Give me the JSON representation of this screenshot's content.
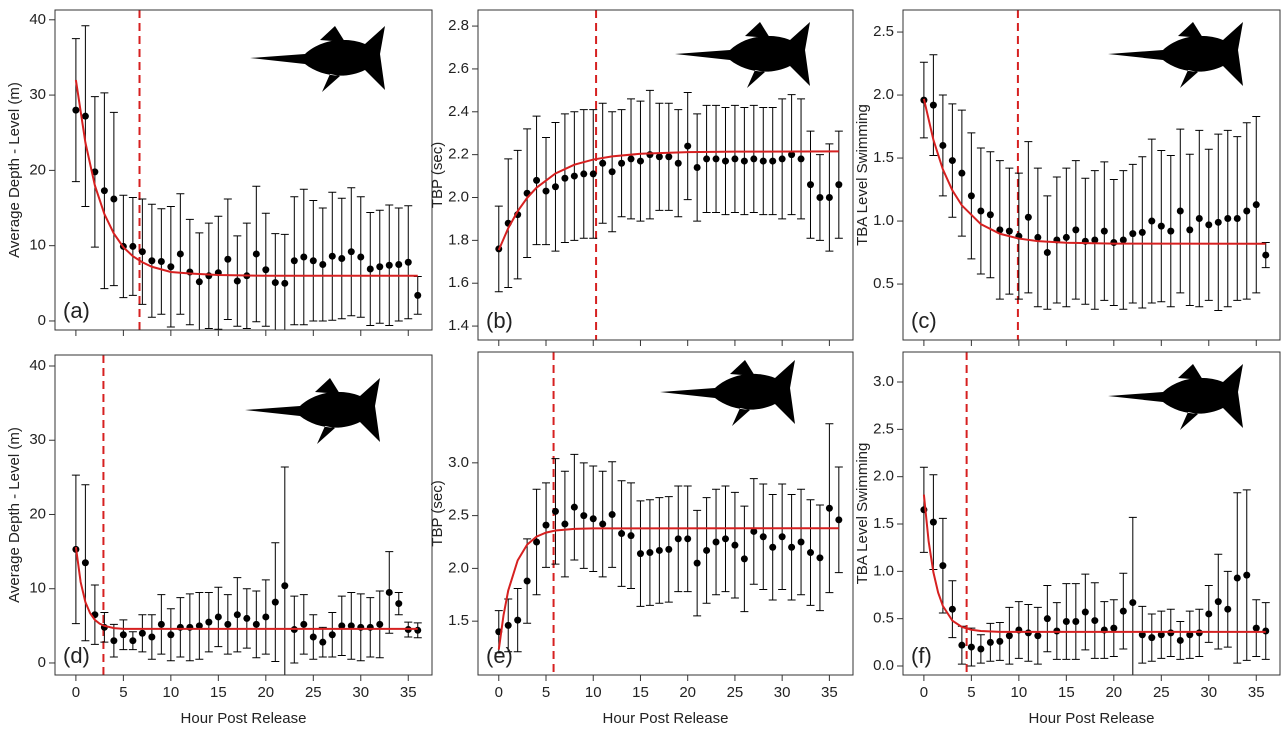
{
  "chart_data": [
    {
      "type": "errorbar",
      "panel_label": "(a)",
      "ylabel": "Average Depth - Level (m)",
      "show_xtick_labels": false,
      "x": [
        0,
        1,
        2,
        3,
        4,
        5,
        6,
        7,
        8,
        9,
        10,
        11,
        12,
        13,
        14,
        15,
        16,
        17,
        18,
        19,
        20,
        21,
        22,
        23,
        24,
        25,
        26,
        27,
        28,
        29,
        30,
        31,
        32,
        33,
        34,
        35,
        36
      ],
      "points": {
        "color": "#000000",
        "values": [
          28,
          27.2,
          19.8,
          17.3,
          16.2,
          9.9,
          9.9,
          9.2,
          8,
          7.9,
          7.2,
          8.9,
          6.5,
          5.2,
          6,
          6.4,
          8.2,
          5.3,
          6,
          8.9,
          6.8,
          5.1,
          5,
          8,
          8.5,
          8,
          7.5,
          8.6,
          8.3,
          9.2,
          8.5,
          6.9,
          7.2,
          7.4,
          7.5,
          7.8,
          3.4
        ],
        "errors": [
          9.5,
          12,
          10,
          13,
          11.5,
          6.8,
          6.5,
          7,
          7.5,
          7,
          8,
          8,
          7,
          6.5,
          7,
          7.5,
          8,
          6,
          7,
          9,
          7.5,
          6.5,
          6.5,
          8.5,
          9,
          8,
          7.5,
          8.5,
          8,
          8.5,
          8,
          7.5,
          7.5,
          8,
          7.5,
          7.5,
          2.5
        ]
      },
      "fit": {
        "color": "#d62020",
        "x": [
          0,
          1,
          2,
          3,
          4,
          5,
          6,
          7,
          8,
          10,
          12,
          15,
          20,
          25,
          30,
          36
        ],
        "values": [
          32,
          23.7,
          18,
          14.2,
          11.6,
          9.8,
          8.6,
          7.8,
          7.2,
          6.5,
          6.3,
          6.1,
          6,
          6,
          6,
          6
        ]
      },
      "vline": 6.7,
      "vline_color": "#d62020",
      "xlim": [
        -2.2,
        37.5
      ],
      "xticks": [
        0,
        5,
        10,
        15,
        20,
        25,
        30,
        35
      ],
      "ylim": [
        -1.2,
        41.3
      ],
      "yticks": [
        0,
        10,
        20,
        30,
        40
      ]
    },
    {
      "type": "errorbar",
      "panel_label": "(b)",
      "ylabel": "TBP (sec)",
      "show_xtick_labels": false,
      "x": [
        0,
        1,
        2,
        3,
        4,
        5,
        6,
        7,
        8,
        9,
        10,
        11,
        12,
        13,
        14,
        15,
        16,
        17,
        18,
        19,
        20,
        21,
        22,
        23,
        24,
        25,
        26,
        27,
        28,
        29,
        30,
        31,
        32,
        33,
        34,
        35,
        36
      ],
      "points": {
        "color": "#000000",
        "values": [
          1.76,
          1.88,
          1.92,
          2.02,
          2.08,
          2.03,
          2.05,
          2.09,
          2.1,
          2.11,
          2.11,
          2.16,
          2.12,
          2.16,
          2.18,
          2.17,
          2.2,
          2.19,
          2.19,
          2.16,
          2.24,
          2.14,
          2.18,
          2.18,
          2.17,
          2.18,
          2.17,
          2.18,
          2.17,
          2.17,
          2.18,
          2.2,
          2.18,
          2.06,
          2,
          2,
          2.06
        ],
        "errors": [
          0.2,
          0.3,
          0.3,
          0.3,
          0.3,
          0.25,
          0.3,
          0.3,
          0.3,
          0.3,
          0.3,
          0.28,
          0.28,
          0.25,
          0.28,
          0.28,
          0.3,
          0.25,
          0.25,
          0.25,
          0.25,
          0.25,
          0.25,
          0.25,
          0.25,
          0.25,
          0.25,
          0.25,
          0.25,
          0.25,
          0.28,
          0.28,
          0.28,
          0.25,
          0.2,
          0.25,
          0.25
        ]
      },
      "fit": {
        "color": "#d62020",
        "x": [
          0,
          1,
          2,
          3,
          4,
          6,
          8,
          10,
          12,
          15,
          20,
          25,
          36
        ],
        "values": [
          1.755,
          1.857,
          1.936,
          1.998,
          2.046,
          2.112,
          2.153,
          2.177,
          2.192,
          2.204,
          2.212,
          2.214,
          2.215
        ]
      },
      "vline": 10.3,
      "vline_color": "#d62020",
      "xlim": [
        -2.2,
        37.5
      ],
      "xticks": [
        0,
        5,
        10,
        15,
        20,
        25,
        30,
        35
      ],
      "ylim": [
        1.335,
        2.875
      ],
      "yticks": [
        1.4,
        1.6,
        1.8,
        {
          "value": 2,
          "label": "2.0"
        },
        2.2,
        2.4,
        2.6,
        2.8
      ]
    },
    {
      "type": "errorbar",
      "panel_label": "(c)",
      "ylabel": "TBA Level Swimming",
      "show_xtick_labels": false,
      "x": [
        0,
        1,
        2,
        3,
        4,
        5,
        6,
        7,
        8,
        9,
        10,
        11,
        12,
        13,
        14,
        15,
        16,
        17,
        18,
        19,
        20,
        21,
        22,
        23,
        24,
        25,
        26,
        27,
        28,
        29,
        30,
        31,
        32,
        33,
        34,
        35,
        36
      ],
      "points": {
        "color": "#000000",
        "values": [
          1.96,
          1.92,
          1.6,
          1.48,
          1.38,
          1.2,
          1.08,
          1.05,
          0.93,
          0.92,
          0.88,
          1.03,
          0.87,
          0.75,
          0.85,
          0.87,
          0.93,
          0.84,
          0.85,
          0.92,
          0.83,
          0.85,
          0.9,
          0.91,
          1,
          0.96,
          0.92,
          1.08,
          0.93,
          1.02,
          0.97,
          0.99,
          1.02,
          1.02,
          1.08,
          1.13,
          0.73
        ],
        "errors": [
          0.3,
          0.4,
          0.4,
          0.45,
          0.5,
          0.5,
          0.5,
          0.5,
          0.55,
          0.5,
          0.5,
          0.6,
          0.55,
          0.45,
          0.5,
          0.55,
          0.55,
          0.5,
          0.55,
          0.55,
          0.5,
          0.55,
          0.55,
          0.6,
          0.65,
          0.6,
          0.6,
          0.65,
          0.6,
          0.7,
          0.6,
          0.7,
          0.7,
          0.65,
          0.7,
          0.7,
          0.1
        ]
      },
      "fit": {
        "color": "#d62020",
        "x": [
          0,
          1,
          2,
          3,
          4,
          6,
          8,
          10,
          12,
          15,
          20,
          36
        ],
        "values": [
          1.97,
          1.645,
          1.41,
          1.243,
          1.124,
          0.975,
          0.899,
          0.861,
          0.841,
          0.828,
          0.821,
          0.82
        ]
      },
      "vline": 9.9,
      "vline_color": "#d62020",
      "xlim": [
        -2.2,
        37.5
      ],
      "xticks": [
        0,
        5,
        10,
        15,
        20,
        25,
        30,
        35
      ],
      "ylim": [
        0.056,
        2.675
      ],
      "yticks": [
        0.5,
        {
          "value": 1,
          "label": "1.0"
        },
        1.5,
        {
          "value": 2,
          "label": "2.0"
        },
        2.5
      ]
    },
    {
      "type": "errorbar",
      "panel_label": "(d)",
      "ylabel": "Average Depth - Level (m)",
      "xlabel": "Hour Post Release",
      "show_xtick_labels": true,
      "x": [
        0,
        1,
        2,
        3,
        4,
        5,
        6,
        7,
        8,
        9,
        10,
        11,
        12,
        13,
        14,
        15,
        16,
        17,
        18,
        19,
        20,
        21,
        22,
        23,
        24,
        25,
        26,
        27,
        28,
        29,
        30,
        31,
        32,
        33,
        34,
        35,
        36
      ],
      "points": {
        "color": "#000000",
        "values": [
          15.3,
          13.5,
          6.5,
          4.8,
          3,
          3.8,
          3,
          4,
          3.5,
          5.2,
          3.8,
          4.8,
          4.8,
          5,
          5.5,
          6.2,
          5.2,
          6.5,
          6,
          5.2,
          6.2,
          8.2,
          10.4,
          4.5,
          5.2,
          3.5,
          2.8,
          3.8,
          5,
          5,
          4.8,
          4.8,
          5.2,
          9.5,
          8,
          4.5,
          4.4
        ],
        "errors": [
          10,
          10.5,
          4,
          2,
          2.2,
          2,
          1.2,
          2.5,
          3,
          4,
          3.5,
          4,
          4.5,
          4.5,
          4,
          4,
          4,
          5,
          4,
          4.5,
          5,
          8,
          16,
          4.5,
          4,
          3,
          2,
          3,
          4,
          4.5,
          4.5,
          4,
          4.5,
          5.5,
          1.5,
          1,
          1
        ]
      },
      "fit": {
        "color": "#d62020",
        "x": [
          0,
          0.5,
          1,
          1.5,
          2,
          2.5,
          3,
          4,
          5,
          8,
          36
        ],
        "values": [
          15.6,
          10.9,
          8.2,
          6.7,
          5.8,
          5.3,
          5,
          4.7,
          4.6,
          4.6,
          4.6
        ]
      },
      "vline": 2.9,
      "vline_color": "#d62020",
      "xlim": [
        -2.2,
        37.5
      ],
      "xticks": [
        0,
        5,
        10,
        15,
        20,
        25,
        30,
        35
      ],
      "ylim": [
        -1.62,
        41.48
      ],
      "yticks": [
        0,
        10,
        20,
        30,
        40
      ]
    },
    {
      "type": "errorbar",
      "panel_label": "(e)",
      "ylabel": "TBP (sec)",
      "xlabel": "Hour Post Release",
      "show_xtick_labels": true,
      "x": [
        0,
        1,
        2,
        3,
        4,
        5,
        6,
        7,
        8,
        9,
        10,
        11,
        12,
        13,
        14,
        15,
        16,
        17,
        18,
        19,
        20,
        21,
        22,
        23,
        24,
        25,
        26,
        27,
        28,
        29,
        30,
        31,
        32,
        33,
        34,
        35,
        36
      ],
      "points": {
        "color": "#000000",
        "values": [
          1.4,
          1.46,
          1.51,
          1.88,
          2.25,
          2.41,
          2.54,
          2.42,
          2.58,
          2.5,
          2.47,
          2.42,
          2.51,
          2.33,
          2.31,
          2.14,
          2.15,
          2.17,
          2.18,
          2.28,
          2.28,
          2.05,
          2.17,
          2.25,
          2.28,
          2.22,
          2.09,
          2.35,
          2.3,
          2.2,
          2.3,
          2.2,
          2.25,
          2.15,
          2.1,
          2.57,
          2.46
        ],
        "errors": [
          0.2,
          0.25,
          0.3,
          0.4,
          0.5,
          0.4,
          0.5,
          0.5,
          0.5,
          0.5,
          0.5,
          0.5,
          0.5,
          0.5,
          0.5,
          0.5,
          0.5,
          0.5,
          0.5,
          0.5,
          0.5,
          0.5,
          0.5,
          0.5,
          0.5,
          0.5,
          0.5,
          0.5,
          0.5,
          0.5,
          0.5,
          0.5,
          0.5,
          0.5,
          0.5,
          0.8,
          0.5
        ]
      },
      "fit": {
        "color": "#d62020",
        "x": [
          0,
          0.5,
          1,
          2,
          3,
          4,
          5,
          6,
          8,
          10,
          36
        ],
        "values": [
          1.23,
          1.555,
          1.79,
          2.076,
          2.225,
          2.301,
          2.339,
          2.359,
          2.374,
          2.379,
          2.38
        ]
      },
      "vline": 5.8,
      "vline_color": "#d62020",
      "xlim": [
        -2.2,
        37.5
      ],
      "xticks": [
        0,
        5,
        10,
        15,
        20,
        25,
        30,
        35
      ],
      "ylim": [
        0.99,
        4.05
      ],
      "yticks": [
        1.5,
        {
          "value": 2,
          "label": "2.0"
        },
        2.5,
        {
          "value": 3,
          "label": "3.0"
        }
      ]
    },
    {
      "type": "errorbar",
      "panel_label": "(f)",
      "ylabel": "TBA Level Swimming",
      "xlabel": "Hour Post Release",
      "show_xtick_labels": true,
      "x": [
        0,
        1,
        2,
        3,
        4,
        5,
        6,
        7,
        8,
        9,
        10,
        11,
        12,
        13,
        14,
        15,
        16,
        17,
        18,
        19,
        20,
        21,
        22,
        23,
        24,
        25,
        26,
        27,
        28,
        29,
        30,
        31,
        32,
        33,
        34,
        35,
        36
      ],
      "points": {
        "color": "#000000",
        "values": [
          1.65,
          1.52,
          1.06,
          0.6,
          0.22,
          0.2,
          0.18,
          0.25,
          0.26,
          0.32,
          0.38,
          0.35,
          0.32,
          0.5,
          0.37,
          0.47,
          0.47,
          0.57,
          0.48,
          0.38,
          0.4,
          0.58,
          0.67,
          0.33,
          0.3,
          0.33,
          0.35,
          0.27,
          0.33,
          0.35,
          0.55,
          0.68,
          0.6,
          0.93,
          0.96,
          0.4,
          0.37
        ],
        "errors": [
          0.45,
          0.5,
          0.5,
          0.3,
          0.2,
          0.2,
          0.15,
          0.2,
          0.2,
          0.3,
          0.3,
          0.3,
          0.3,
          0.35,
          0.3,
          0.4,
          0.4,
          0.4,
          0.4,
          0.3,
          0.3,
          0.4,
          0.9,
          0.3,
          0.25,
          0.25,
          0.25,
          0.2,
          0.25,
          0.25,
          0.3,
          0.5,
          0.4,
          0.9,
          0.9,
          0.3,
          0.3
        ]
      },
      "fit": {
        "color": "#d62020",
        "x": [
          0,
          0.5,
          1,
          1.5,
          2,
          3,
          4,
          5,
          6,
          8,
          36
        ],
        "values": [
          1.81,
          1.316,
          0.99,
          0.776,
          0.634,
          0.479,
          0.412,
          0.383,
          0.37,
          0.361,
          0.36
        ]
      },
      "vline": 4.5,
      "vline_color": "#d62020",
      "xlim": [
        -2.2,
        37.5
      ],
      "xticks": [
        0,
        5,
        10,
        15,
        20,
        25,
        30,
        35
      ],
      "ylim": [
        -0.095,
        3.317
      ],
      "yticks": [
        {
          "value": 0,
          "label": "0.0"
        },
        0.5,
        {
          "value": 1,
          "label": "1.0"
        },
        1.5,
        {
          "value": 2,
          "label": "2.0"
        },
        2.5,
        {
          "value": 3,
          "label": "3.0"
        }
      ]
    }
  ]
}
